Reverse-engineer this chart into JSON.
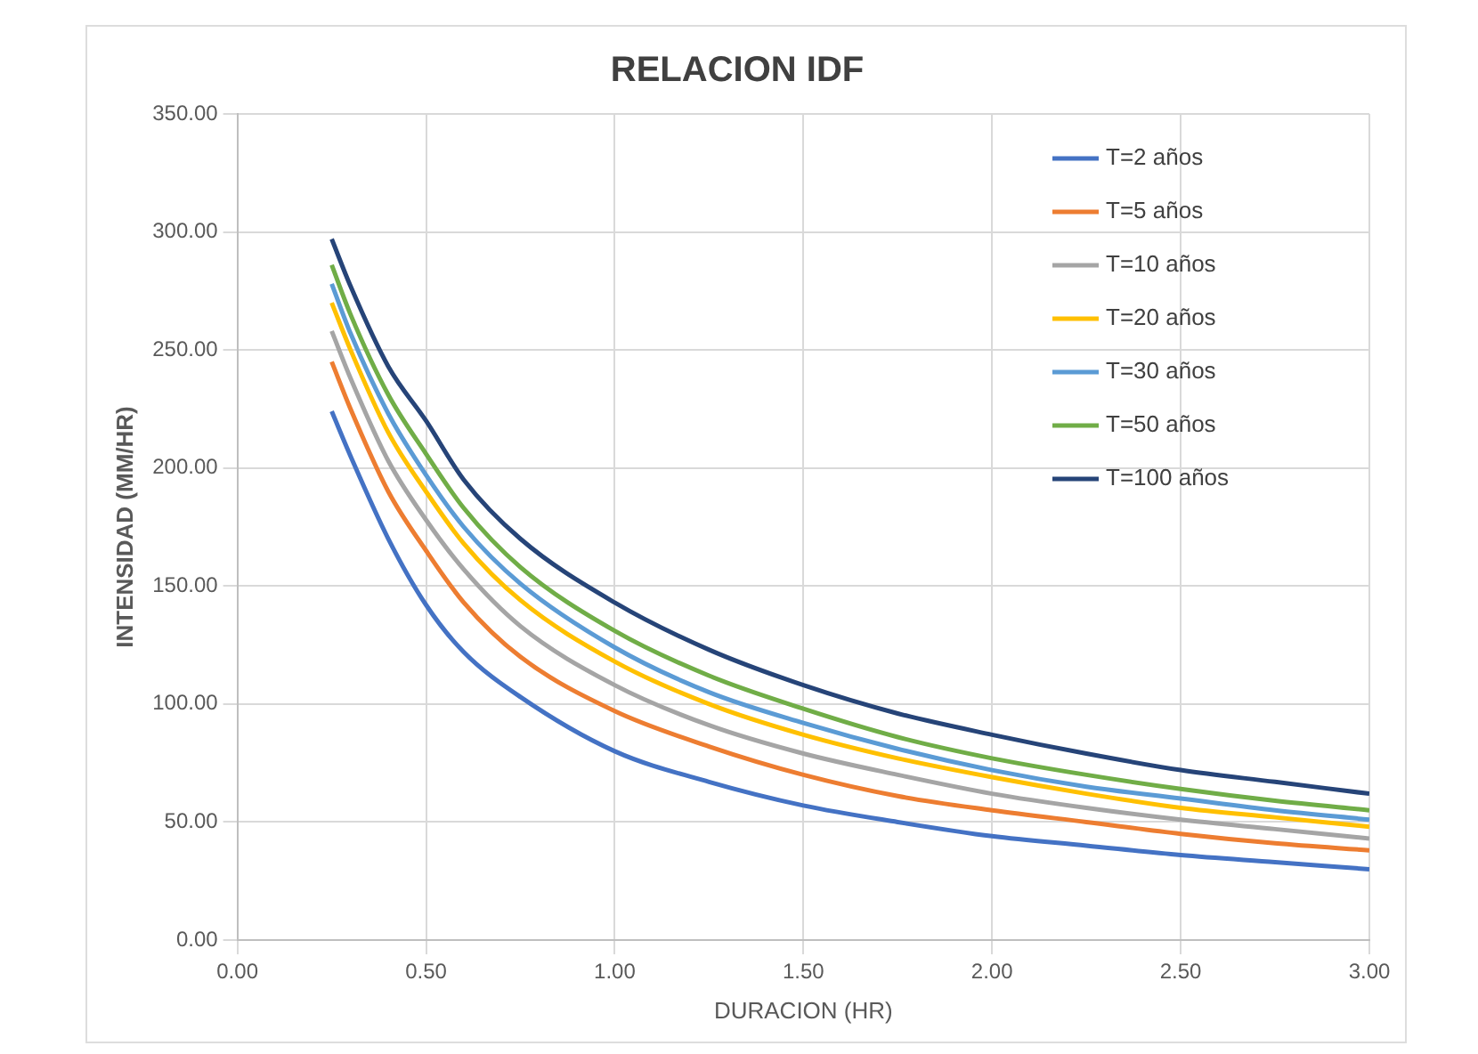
{
  "chart_data": {
    "type": "line",
    "title": "RELACION IDF",
    "xlabel": "DURACION (HR)",
    "ylabel": "INTENSIDAD (MM/HR)",
    "x": [
      0.25,
      0.3,
      0.4,
      0.5,
      0.6,
      0.75,
      1,
      1.25,
      1.5,
      1.75,
      2,
      2.25,
      2.5,
      2.75,
      3
    ],
    "series": [
      {
        "name": "T=2 años",
        "color": "#4472c4",
        "values": [
          224,
          205,
          170,
          142,
          122,
          103,
          80,
          67,
          57,
          50,
          44,
          40,
          36,
          33,
          30
        ]
      },
      {
        "name": "T=5 años",
        "color": "#ed7d31",
        "values": [
          245,
          225,
          190,
          165,
          143,
          120,
          97,
          82,
          70,
          61,
          55,
          50,
          45,
          41,
          38
        ]
      },
      {
        "name": "T=10 años",
        "color": "#a5a5a5",
        "values": [
          258,
          238,
          203,
          178,
          157,
          133,
          108,
          91,
          79,
          70,
          62,
          56,
          51,
          47,
          43
        ]
      },
      {
        "name": "T=20 años",
        "color": "#ffc000",
        "values": [
          270,
          250,
          215,
          190,
          168,
          144,
          118,
          100,
          87,
          77,
          69,
          62,
          56,
          52,
          48
        ]
      },
      {
        "name": "T=30 años",
        "color": "#5b9bd5",
        "values": [
          278,
          257,
          223,
          197,
          175,
          151,
          124,
          105,
          92,
          81,
          72,
          65,
          60,
          55,
          51
        ]
      },
      {
        "name": "T=50 años",
        "color": "#70ad47",
        "values": [
          286,
          265,
          231,
          206,
          183,
          158,
          131,
          112,
          98,
          86,
          77,
          70,
          64,
          59,
          55
        ]
      },
      {
        "name": "T=100 años",
        "color": "#264478",
        "values": [
          297,
          277,
          243,
          220,
          195,
          170,
          143,
          123,
          108,
          96,
          87,
          79,
          72,
          67,
          62
        ]
      }
    ],
    "xlim": [
      0,
      3
    ],
    "xticks": [
      {
        "value": 0,
        "label": "0.00"
      },
      {
        "value": 0.5,
        "label": "0.50"
      },
      {
        "value": 1,
        "label": "1.00"
      },
      {
        "value": 1.5,
        "label": "1.50"
      },
      {
        "value": 2,
        "label": "2.00"
      },
      {
        "value": 2.5,
        "label": "2.50"
      },
      {
        "value": 3,
        "label": "3.00"
      }
    ],
    "ylim": [
      0,
      350
    ],
    "yticks": [
      {
        "value": 0,
        "label": "0.00"
      },
      {
        "value": 50,
        "label": "50.00"
      },
      {
        "value": 100,
        "label": "100.00"
      },
      {
        "value": 150,
        "label": "150.00"
      },
      {
        "value": 200,
        "label": "200.00"
      },
      {
        "value": 250,
        "label": "250.00"
      },
      {
        "value": 300,
        "label": "300.00"
      },
      {
        "value": 350,
        "label": "350.00"
      }
    ],
    "grid": true,
    "legend": "top right",
    "marker": "none",
    "line_style": "solid"
  }
}
